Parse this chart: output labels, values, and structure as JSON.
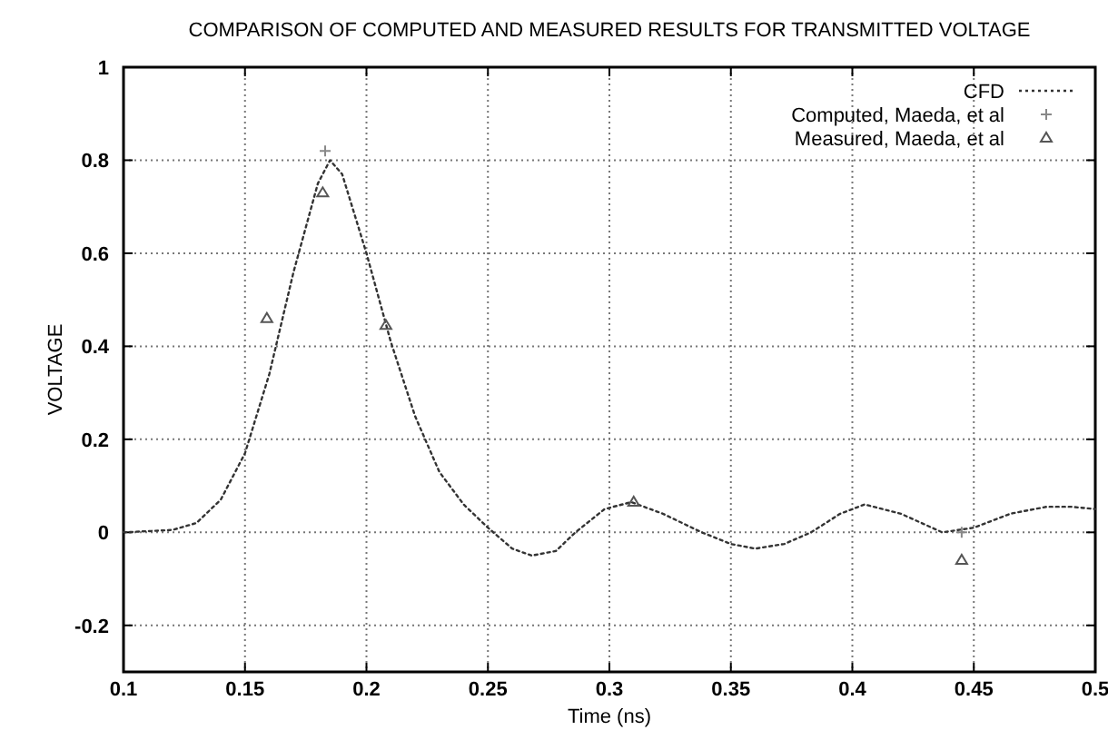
{
  "chart_data": {
    "type": "line",
    "title": "COMPARISON OF COMPUTED AND MEASURED RESULTS FOR TRANSMITTED VOLTAGE",
    "xlabel": "Time (ns)",
    "ylabel": "VOLTAGE",
    "xlim": [
      0.1,
      0.5
    ],
    "xticks": [
      0.1,
      0.15,
      0.2,
      0.25,
      0.3,
      0.35,
      0.4,
      0.45,
      0.5
    ],
    "ylim": [
      -0.3,
      1
    ],
    "yticks": [
      -0.2,
      0,
      0.2,
      0.4,
      0.6,
      0.8,
      1
    ],
    "grid": true,
    "legend": "top right",
    "series": [
      {
        "name": "CFD",
        "line_style": "dotted",
        "marker": "none",
        "color": "#333333",
        "x": [
          0.1,
          0.12,
          0.13,
          0.14,
          0.15,
          0.16,
          0.17,
          0.18,
          0.185,
          0.19,
          0.2,
          0.21,
          0.22,
          0.23,
          0.24,
          0.25,
          0.26,
          0.268,
          0.278,
          0.286,
          0.298,
          0.309,
          0.322,
          0.338,
          0.35,
          0.36,
          0.372,
          0.383,
          0.395,
          0.405,
          0.42,
          0.437,
          0.45,
          0.465,
          0.48,
          0.49,
          0.5
        ],
        "values": [
          0,
          0.005,
          0.02,
          0.07,
          0.17,
          0.34,
          0.56,
          0.75,
          0.8,
          0.77,
          0.6,
          0.41,
          0.25,
          0.13,
          0.06,
          0.01,
          -0.035,
          -0.05,
          -0.04,
          0,
          0.05,
          0.065,
          0.04,
          0,
          -0.025,
          -0.035,
          -0.025,
          0,
          0.04,
          0.06,
          0.04,
          0,
          0.01,
          0.04,
          0.055,
          0.055,
          0.05
        ]
      },
      {
        "name": "Computed, Maeda, et al",
        "type": "scatter",
        "marker": "cross",
        "color": "#888888",
        "x": [
          0.183,
          0.445
        ],
        "values": [
          0.82,
          0.0
        ]
      },
      {
        "name": "Measured, Maeda, et al",
        "type": "scatter",
        "marker": "triangle",
        "color": "#555555",
        "x": [
          0.159,
          0.182,
          0.208,
          0.31,
          0.445
        ],
        "values": [
          0.46,
          0.73,
          0.445,
          0.065,
          -0.06
        ]
      }
    ]
  }
}
